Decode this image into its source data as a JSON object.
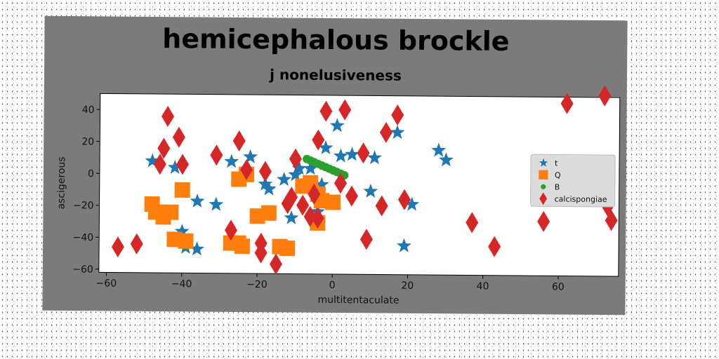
{
  "chart_data": {
    "type": "scatter",
    "title": "hemicephalous brockle",
    "subtitle": "j nonelusiveness",
    "xlabel": "multitentaculate",
    "ylabel": "ascigerous",
    "xlim": [
      -62,
      76
    ],
    "ylim": [
      -62,
      50
    ],
    "xticks": [
      -60,
      -40,
      -20,
      0,
      20,
      40,
      60
    ],
    "yticks": [
      -60,
      -40,
      -20,
      0,
      20,
      40
    ],
    "grid": false,
    "legend_position": "right",
    "series": [
      {
        "name": "t",
        "marker": "star",
        "color": "#1f77b4",
        "points": [
          [
            -48,
            8
          ],
          [
            -42,
            4
          ],
          [
            -36,
            -17
          ],
          [
            -31,
            -19
          ],
          [
            -27,
            8
          ],
          [
            -22,
            11
          ],
          [
            -18,
            -6
          ],
          [
            -17,
            -9
          ],
          [
            -13,
            -3
          ],
          [
            -11,
            -27
          ],
          [
            -10,
            0
          ],
          [
            -9,
            4
          ],
          [
            -6,
            4
          ],
          [
            -3,
            -6
          ],
          [
            -4,
            -23
          ],
          [
            -2,
            17
          ],
          [
            1,
            31
          ],
          [
            2,
            12
          ],
          [
            5,
            13
          ],
          [
            10,
            -10
          ],
          [
            11,
            11
          ],
          [
            17,
            27
          ],
          [
            19,
            -44
          ],
          [
            21,
            -18
          ],
          [
            28,
            16
          ],
          [
            30,
            10
          ],
          [
            -40,
            -36
          ],
          [
            -39,
            -46
          ],
          [
            -36,
            -47
          ]
        ]
      },
      {
        "name": "Q",
        "marker": "square",
        "color": "#ff7f0e",
        "points": [
          [
            -48,
            -19
          ],
          [
            -47,
            -24
          ],
          [
            -45,
            -27
          ],
          [
            -43,
            -24
          ],
          [
            -42,
            -41
          ],
          [
            -39,
            -42
          ],
          [
            -40,
            -10
          ],
          [
            -27,
            -43
          ],
          [
            -25,
            -43
          ],
          [
            -24,
            -45
          ],
          [
            -25,
            -3
          ],
          [
            -23,
            0
          ],
          [
            -20,
            -26
          ],
          [
            -17,
            -24
          ],
          [
            -14,
            -45
          ],
          [
            -12,
            -46
          ],
          [
            -8,
            -7
          ],
          [
            -6,
            -5
          ],
          [
            -4,
            -12
          ],
          [
            -3,
            -16
          ],
          [
            0,
            -17
          ],
          [
            -4,
            -30
          ]
        ]
      },
      {
        "name": "B",
        "marker": "circle",
        "color": "#2ca02c",
        "points": [
          [
            -7,
            10
          ],
          [
            -6,
            9
          ],
          [
            -5,
            8
          ],
          [
            -4,
            7
          ],
          [
            -3,
            6
          ],
          [
            -2,
            5
          ],
          [
            -1,
            4
          ],
          [
            0,
            3
          ],
          [
            1,
            2
          ],
          [
            2,
            1
          ],
          [
            3,
            0
          ]
        ]
      },
      {
        "name": "calcispongiae",
        "marker": "diamond",
        "color": "#d62728",
        "points": [
          [
            -57,
            -46
          ],
          [
            -52,
            -44
          ],
          [
            -46,
            6
          ],
          [
            -45,
            16
          ],
          [
            -44,
            36
          ],
          [
            -41,
            23
          ],
          [
            -40,
            6
          ],
          [
            -31,
            12
          ],
          [
            -27,
            -35
          ],
          [
            -25,
            21
          ],
          [
            -23,
            3
          ],
          [
            -18,
            2
          ],
          [
            -19,
            -43
          ],
          [
            -19,
            -49
          ],
          [
            -15,
            -56
          ],
          [
            -12,
            -18
          ],
          [
            -11,
            -14
          ],
          [
            -10,
            10
          ],
          [
            -8,
            -19
          ],
          [
            -6,
            -26
          ],
          [
            -5,
            -12
          ],
          [
            -4,
            22
          ],
          [
            -4,
            -27
          ],
          [
            -2,
            40
          ],
          [
            2,
            -5
          ],
          [
            3,
            41
          ],
          [
            5,
            -13
          ],
          [
            8,
            14
          ],
          [
            9,
            -40
          ],
          [
            13,
            -19
          ],
          [
            14,
            27
          ],
          [
            17,
            38
          ],
          [
            19,
            -15
          ],
          [
            37,
            -29
          ],
          [
            43,
            -44
          ],
          [
            56,
            -28
          ],
          [
            62,
            46
          ],
          [
            72,
            51
          ],
          [
            73,
            -18
          ],
          [
            74,
            -27
          ]
        ]
      }
    ]
  }
}
